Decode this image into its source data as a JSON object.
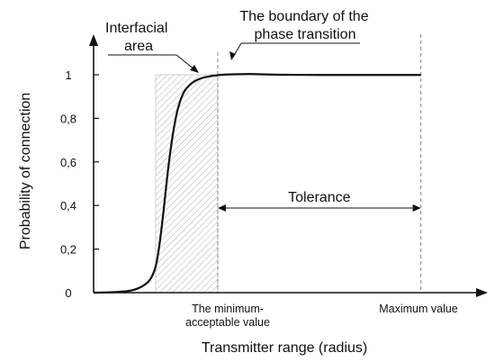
{
  "chart_data": {
    "type": "line",
    "title": "",
    "xlabel": "Transmitter range (radius)",
    "ylabel": "Probability of connection",
    "ylim": [
      0,
      1
    ],
    "yticks": [
      {
        "value": 0,
        "label": "0"
      },
      {
        "value": 0.2,
        "label": "0,2"
      },
      {
        "value": 0.4,
        "label": "0,4"
      },
      {
        "value": 0.6,
        "label": "0,6"
      },
      {
        "value": 0.8,
        "label": "0,8"
      },
      {
        "value": 1,
        "label": "1"
      }
    ],
    "xlim": [
      0,
      1.0
    ],
    "grid": false,
    "series": [
      {
        "x": [
          0,
          0.05,
          0.1,
          0.13,
          0.15,
          0.165,
          0.175,
          0.185,
          0.195,
          0.205,
          0.215,
          0.225,
          0.24,
          0.26,
          0.28,
          0.3,
          0.33,
          0.37,
          0.42,
          0.5,
          0.6,
          0.7,
          0.8,
          0.87
        ],
        "values": [
          0,
          0.002,
          0.01,
          0.03,
          0.06,
          0.12,
          0.22,
          0.36,
          0.52,
          0.66,
          0.77,
          0.85,
          0.92,
          0.96,
          0.98,
          0.99,
          0.998,
          1.002,
          1.003,
          1.0,
          0.999,
          0.999,
          0.999,
          0.999
        ]
      }
    ],
    "markers": {
      "shaded_region_x": [
        0.165,
        0.33
      ],
      "minimum_acceptable_x": 0.33,
      "maximum_x": 0.87
    },
    "x_marker_labels": {
      "minimum": [
        "The minimum-",
        "acceptable value"
      ],
      "maximum": "Maximum value"
    },
    "annotations": {
      "interfacial_area": [
        "Interfacial",
        "area"
      ],
      "phase_transition": [
        "The boundary of the",
        "phase transition"
      ],
      "tolerance": "Tolerance"
    }
  }
}
